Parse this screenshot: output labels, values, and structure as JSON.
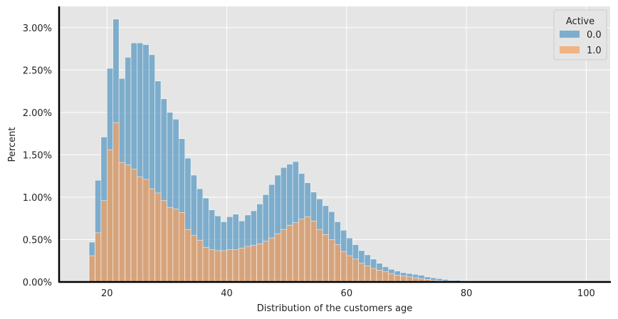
{
  "chart_data": {
    "type": "bar",
    "title": "",
    "xlabel": "Distribution of the customers age",
    "ylabel": "Percent",
    "xlim": [
      12,
      104
    ],
    "ylim": [
      0,
      3.25
    ],
    "x_ticks": [
      20,
      40,
      60,
      80,
      100
    ],
    "y_ticks": [
      0,
      0.5,
      1.0,
      1.5,
      2.0,
      2.5,
      3.0
    ],
    "y_tick_labels": [
      "0.00%",
      "0.50%",
      "1.00%",
      "1.50%",
      "2.00%",
      "2.50%",
      "3.00%"
    ],
    "grid": true,
    "legend": {
      "title": "Active",
      "placement": "top-right"
    },
    "bin_start": 17,
    "bin_width": 1,
    "series": [
      {
        "name": "0.0",
        "color": "#5b9ac3",
        "values": [
          0.47,
          1.2,
          1.71,
          2.52,
          3.1,
          2.4,
          2.65,
          2.82,
          2.82,
          2.8,
          2.68,
          2.37,
          2.16,
          2.0,
          1.92,
          1.69,
          1.46,
          1.26,
          1.1,
          0.99,
          0.85,
          0.78,
          0.71,
          0.77,
          0.8,
          0.72,
          0.79,
          0.84,
          0.92,
          1.03,
          1.15,
          1.26,
          1.35,
          1.39,
          1.42,
          1.28,
          1.17,
          1.06,
          0.98,
          0.9,
          0.83,
          0.71,
          0.61,
          0.52,
          0.44,
          0.37,
          0.32,
          0.27,
          0.22,
          0.18,
          0.15,
          0.13,
          0.11,
          0.1,
          0.09,
          0.08,
          0.06,
          0.05,
          0.04,
          0.03,
          0.02,
          0.02,
          0.01,
          0.01,
          0.005,
          0.004,
          0.003,
          0.003,
          0.002,
          0.002,
          0.002,
          0.002,
          0.001,
          0.001,
          0.001,
          0.001,
          0.001,
          0.001,
          0.001,
          0.001,
          0.001,
          0.001,
          0.001,
          0.001
        ]
      },
      {
        "name": "1.0",
        "color": "#f4a261",
        "values": [
          0.31,
          0.58,
          0.96,
          1.56,
          1.88,
          1.41,
          1.38,
          1.33,
          1.24,
          1.21,
          1.1,
          1.05,
          0.96,
          0.88,
          0.86,
          0.82,
          0.62,
          0.55,
          0.49,
          0.41,
          0.38,
          0.37,
          0.37,
          0.38,
          0.38,
          0.4,
          0.42,
          0.43,
          0.45,
          0.48,
          0.52,
          0.57,
          0.62,
          0.67,
          0.7,
          0.74,
          0.77,
          0.72,
          0.62,
          0.56,
          0.5,
          0.44,
          0.36,
          0.31,
          0.27,
          0.22,
          0.19,
          0.16,
          0.14,
          0.12,
          0.1,
          0.08,
          0.07,
          0.06,
          0.05,
          0.04,
          0.03,
          0.02,
          0.015,
          0.01,
          0.008,
          0.006,
          0.004,
          0.003,
          0.002,
          0.002,
          0.001,
          0.001,
          0.001,
          0.001,
          0.001,
          0.001,
          0.001,
          0.001,
          0.001,
          0.001,
          0.001,
          0.001,
          0.001,
          0.001,
          0.001,
          0.001,
          0.001,
          0.001
        ]
      }
    ]
  }
}
